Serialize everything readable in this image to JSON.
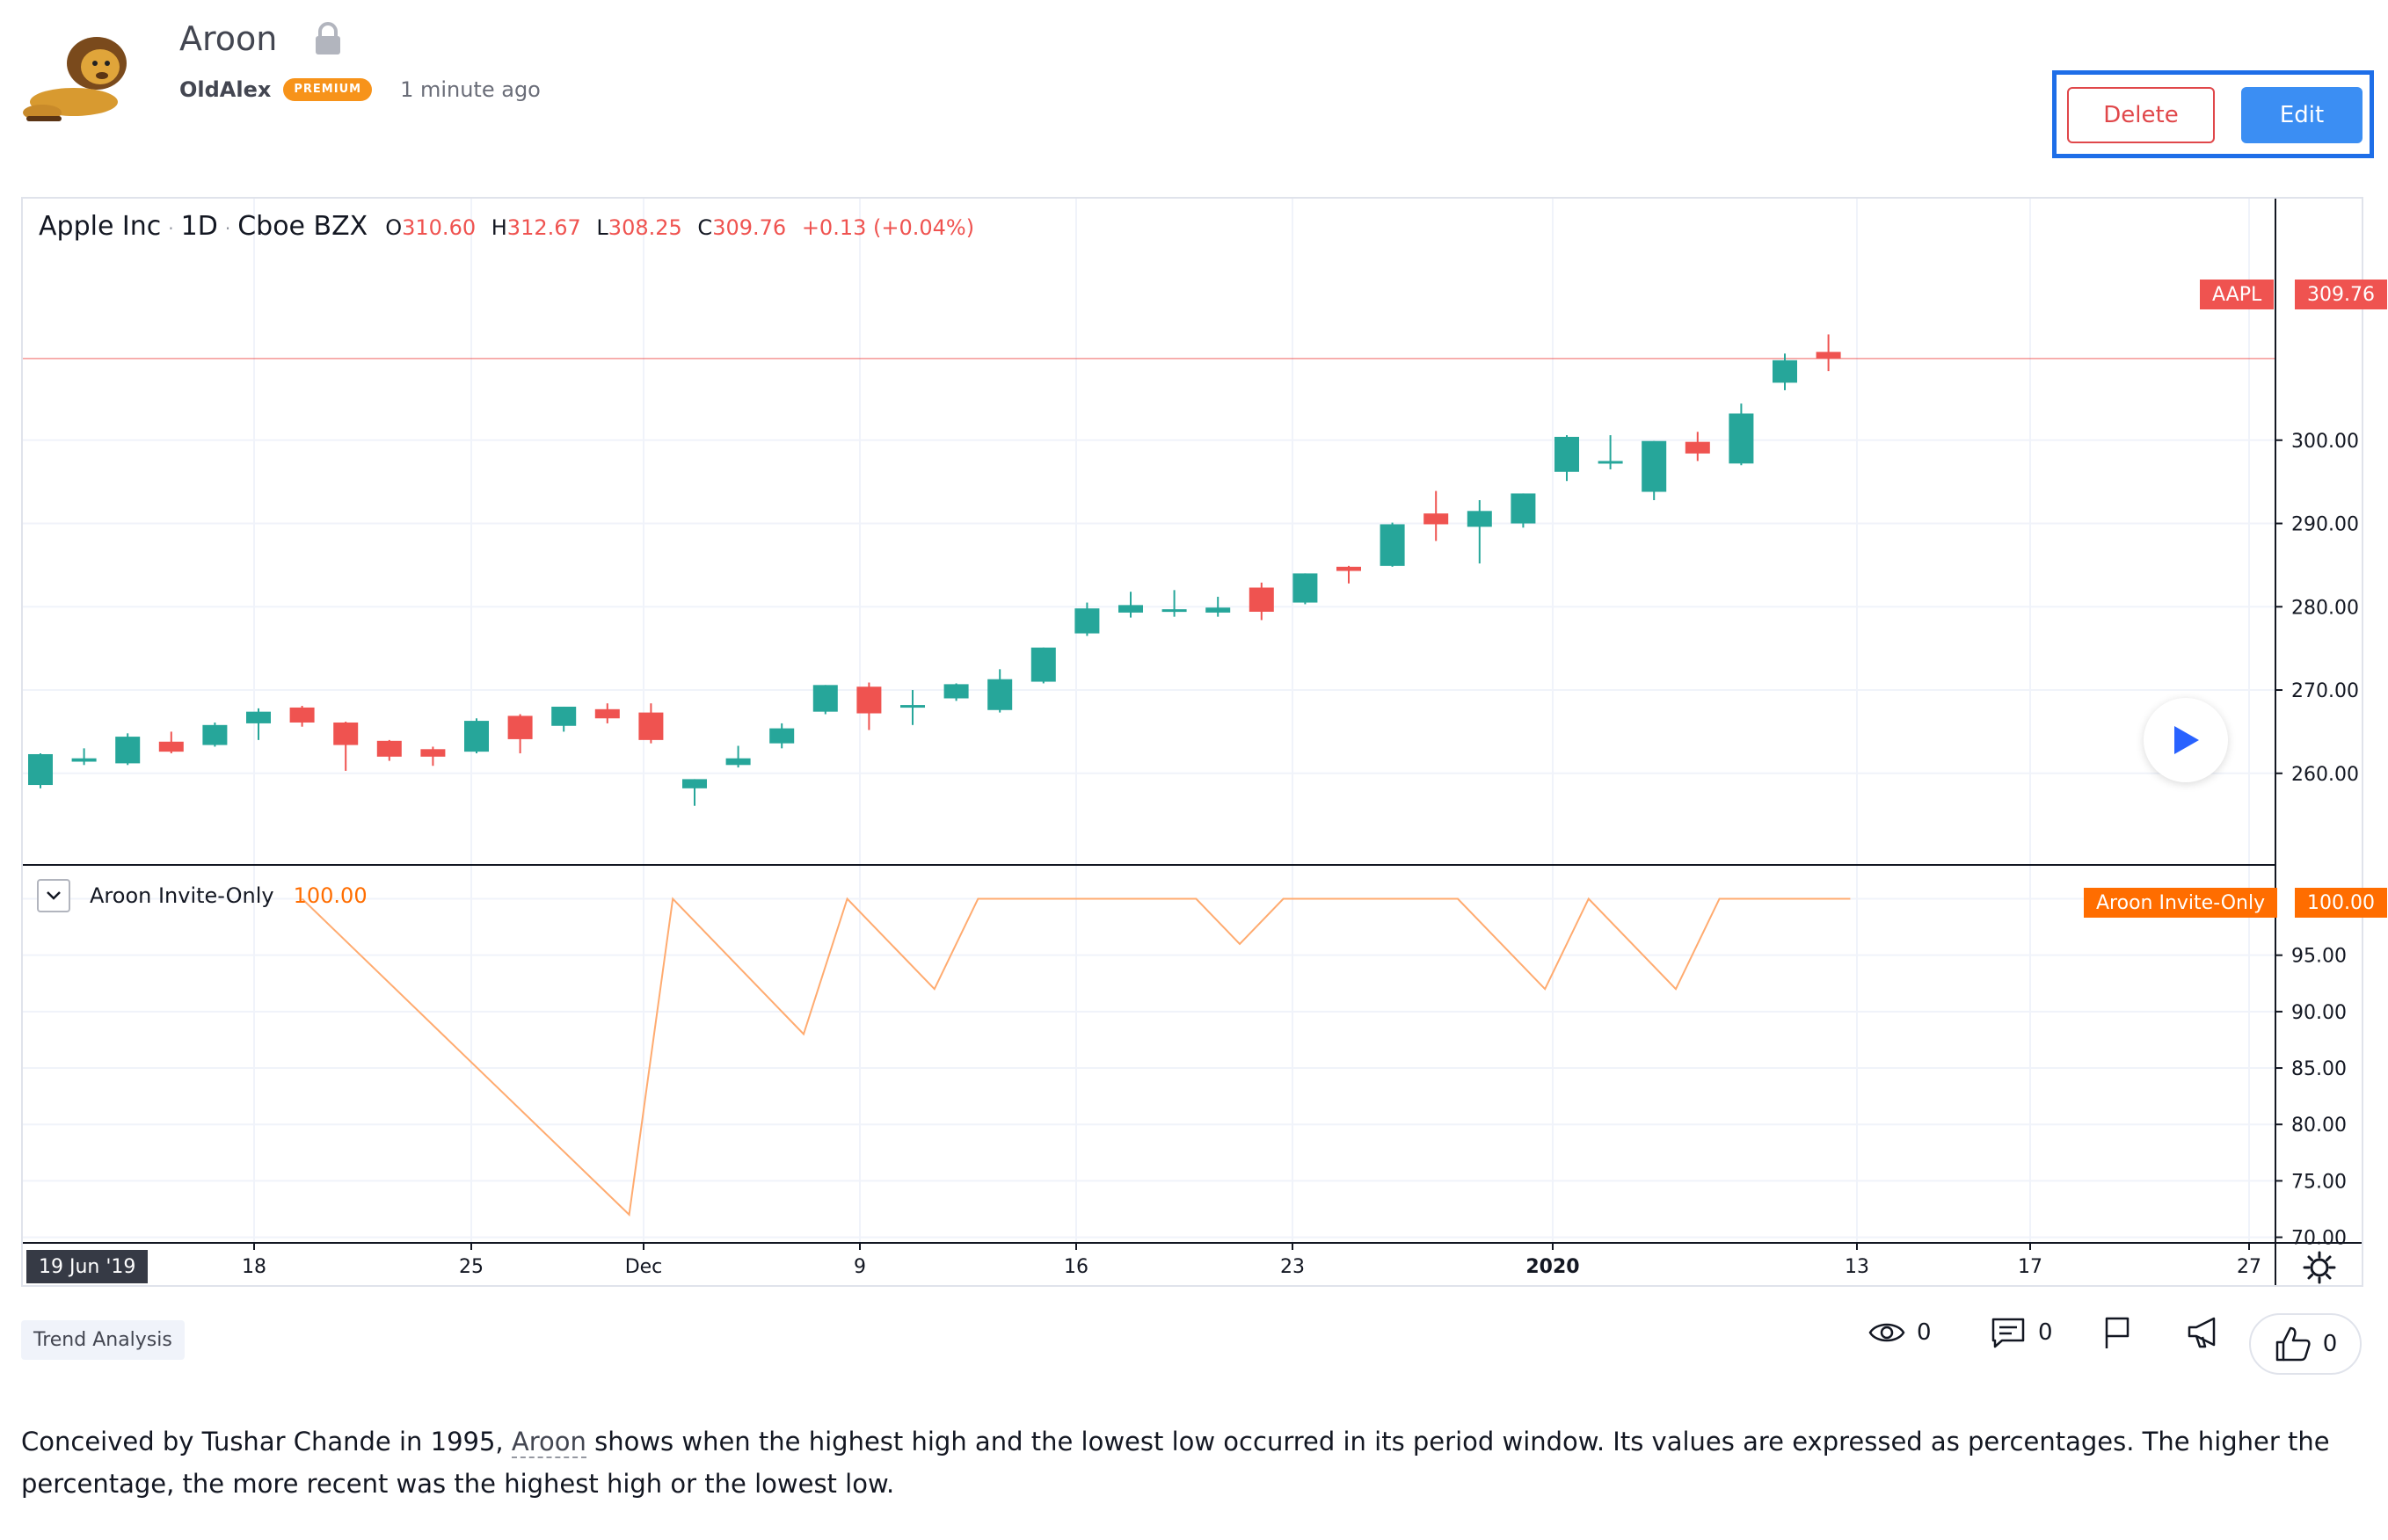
{
  "idea": {
    "title": "Aroon",
    "author": "OldAlex",
    "badge": "PREMIUM",
    "time_ago": "1 minute ago"
  },
  "actions": {
    "delete_label": "Delete",
    "edit_label": "Edit"
  },
  "chart_header": {
    "symbol_name": "Apple Inc",
    "interval": "1D",
    "exchange": "Cboe BZX",
    "open_label": "O",
    "open": "310.60",
    "high_label": "H",
    "high": "312.67",
    "low_label": "L",
    "low": "308.25",
    "close_label": "C",
    "close": "309.76",
    "change": "+0.13 (+0.04%)"
  },
  "price_tag": {
    "ticker": "AAPL",
    "value": "309.76"
  },
  "indicator": {
    "name": "Aroon Invite-Only",
    "value": "100.00",
    "tag_name": "Aroon Invite-Only",
    "tag_value": "100.00"
  },
  "time_axis": {
    "current_date": "19 Jun '19",
    "ticks": [
      {
        "label": "18",
        "bold": false
      },
      {
        "label": "25",
        "bold": false
      },
      {
        "label": "Dec",
        "bold": false
      },
      {
        "label": "9",
        "bold": false
      },
      {
        "label": "16",
        "bold": false
      },
      {
        "label": "23",
        "bold": false
      },
      {
        "label": "2020",
        "bold": true
      },
      {
        "label": "13",
        "bold": false
      },
      {
        "label": "17",
        "bold": false
      },
      {
        "label": "27",
        "bold": false
      }
    ]
  },
  "colors": {
    "up": "#26a69a",
    "down": "#ef5350",
    "indicator": "#ff6d00",
    "accent": "#2962ff"
  },
  "chart_data": [
    {
      "type": "candlestick",
      "title": "Apple Inc · 1D · Cboe BZX",
      "price_axis_ticks": [
        "260.00",
        "270.00",
        "280.00",
        "290.00",
        "300.00"
      ],
      "ylim": [
        249,
        329
      ],
      "candles": [
        {
          "o": 258.6,
          "h": 262.4,
          "l": 258.2,
          "c": 262.3
        },
        {
          "o": 261.4,
          "h": 263.0,
          "l": 261.0,
          "c": 261.8
        },
        {
          "o": 261.2,
          "h": 264.8,
          "l": 261.0,
          "c": 264.4
        },
        {
          "o": 263.8,
          "h": 265.0,
          "l": 262.4,
          "c": 262.6
        },
        {
          "o": 263.4,
          "h": 266.1,
          "l": 263.2,
          "c": 265.8
        },
        {
          "o": 266.0,
          "h": 267.8,
          "l": 264.0,
          "c": 267.4
        },
        {
          "o": 267.9,
          "h": 268.1,
          "l": 265.6,
          "c": 266.1
        },
        {
          "o": 266.1,
          "h": 266.2,
          "l": 260.3,
          "c": 263.4
        },
        {
          "o": 263.9,
          "h": 264.0,
          "l": 261.5,
          "c": 262.0
        },
        {
          "o": 262.9,
          "h": 263.2,
          "l": 260.9,
          "c": 262.0
        },
        {
          "o": 262.6,
          "h": 266.6,
          "l": 262.4,
          "c": 266.3
        },
        {
          "o": 266.9,
          "h": 267.1,
          "l": 262.4,
          "c": 264.1
        },
        {
          "o": 265.7,
          "h": 268.0,
          "l": 265.0,
          "c": 268.0
        },
        {
          "o": 267.7,
          "h": 268.4,
          "l": 266.0,
          "c": 266.6
        },
        {
          "o": 267.3,
          "h": 268.4,
          "l": 263.6,
          "c": 264.0
        },
        {
          "o": 258.2,
          "h": 259.3,
          "l": 256.1,
          "c": 259.3
        },
        {
          "o": 261.0,
          "h": 263.3,
          "l": 260.7,
          "c": 261.8
        },
        {
          "o": 263.6,
          "h": 266.0,
          "l": 263.0,
          "c": 265.4
        },
        {
          "o": 267.4,
          "h": 270.6,
          "l": 267.1,
          "c": 270.6
        },
        {
          "o": 270.4,
          "h": 270.9,
          "l": 265.2,
          "c": 267.2
        },
        {
          "o": 268.2,
          "h": 270.0,
          "l": 265.8,
          "c": 268.2
        },
        {
          "o": 269.0,
          "h": 270.8,
          "l": 268.7,
          "c": 270.7
        },
        {
          "o": 267.6,
          "h": 272.5,
          "l": 267.3,
          "c": 271.3
        },
        {
          "o": 271.0,
          "h": 275.1,
          "l": 270.8,
          "c": 275.1
        },
        {
          "o": 276.8,
          "h": 280.5,
          "l": 276.5,
          "c": 279.8
        },
        {
          "o": 279.3,
          "h": 281.8,
          "l": 278.7,
          "c": 280.2
        },
        {
          "o": 279.7,
          "h": 282.0,
          "l": 278.8,
          "c": 279.7
        },
        {
          "o": 279.3,
          "h": 281.2,
          "l": 278.8,
          "c": 279.9
        },
        {
          "o": 282.3,
          "h": 282.9,
          "l": 278.4,
          "c": 279.4
        },
        {
          "o": 280.5,
          "h": 284.0,
          "l": 280.3,
          "c": 284.0
        },
        {
          "o": 284.8,
          "h": 284.9,
          "l": 282.8,
          "c": 284.3
        },
        {
          "o": 284.9,
          "h": 290.1,
          "l": 284.8,
          "c": 289.9
        },
        {
          "o": 291.2,
          "h": 293.9,
          "l": 287.9,
          "c": 289.9
        },
        {
          "o": 289.6,
          "h": 292.8,
          "l": 285.2,
          "c": 291.5
        },
        {
          "o": 290.0,
          "h": 293.6,
          "l": 289.5,
          "c": 293.6
        },
        {
          "o": 296.2,
          "h": 300.6,
          "l": 295.1,
          "c": 300.4
        },
        {
          "o": 297.2,
          "h": 300.6,
          "l": 296.5,
          "c": 297.5
        },
        {
          "o": 293.8,
          "h": 299.9,
          "l": 292.8,
          "c": 299.9
        },
        {
          "o": 299.8,
          "h": 301.0,
          "l": 297.5,
          "c": 298.4
        },
        {
          "o": 297.2,
          "h": 304.4,
          "l": 297.0,
          "c": 303.2
        },
        {
          "o": 306.9,
          "h": 310.4,
          "l": 306.0,
          "c": 309.6
        },
        {
          "o": 310.6,
          "h": 312.7,
          "l": 308.3,
          "c": 309.8
        }
      ]
    },
    {
      "type": "line",
      "title": "Aroon Invite-Only",
      "axis_ticks": [
        "70.00",
        "75.00",
        "80.00",
        "85.00",
        "90.00",
        "95.00",
        "100.00"
      ],
      "ylim": [
        69.5,
        103.0
      ],
      "points": [
        {
          "i": 6,
          "v": 100.0
        },
        {
          "i": 13.5,
          "v": 72.0
        },
        {
          "i": 14.5,
          "v": 100.0
        },
        {
          "i": 17.5,
          "v": 88.0
        },
        {
          "i": 18.5,
          "v": 100.0
        },
        {
          "i": 20.5,
          "v": 92.0
        },
        {
          "i": 21.5,
          "v": 100.0
        },
        {
          "i": 26.5,
          "v": 100.0
        },
        {
          "i": 27.5,
          "v": 96.0
        },
        {
          "i": 28.5,
          "v": 100.0
        },
        {
          "i": 32.5,
          "v": 100.0
        },
        {
          "i": 34.5,
          "v": 92.0
        },
        {
          "i": 35.5,
          "v": 100.0
        },
        {
          "i": 37.5,
          "v": 92.0
        },
        {
          "i": 38.5,
          "v": 100.0
        },
        {
          "i": 41.5,
          "v": 100.0
        }
      ]
    }
  ],
  "tags": {
    "category": "Trend Analysis"
  },
  "stats": {
    "views": "0",
    "comments": "0",
    "likes": "0"
  },
  "description": {
    "before": "Conceived by Tushar Chande in 1995, ",
    "link": "Aroon",
    "after": " shows when the highest high and the lowest low occurred in its period window. Its values are expressed as percentages. The higher the percentage, the more recent was the highest high or the lowest low."
  }
}
